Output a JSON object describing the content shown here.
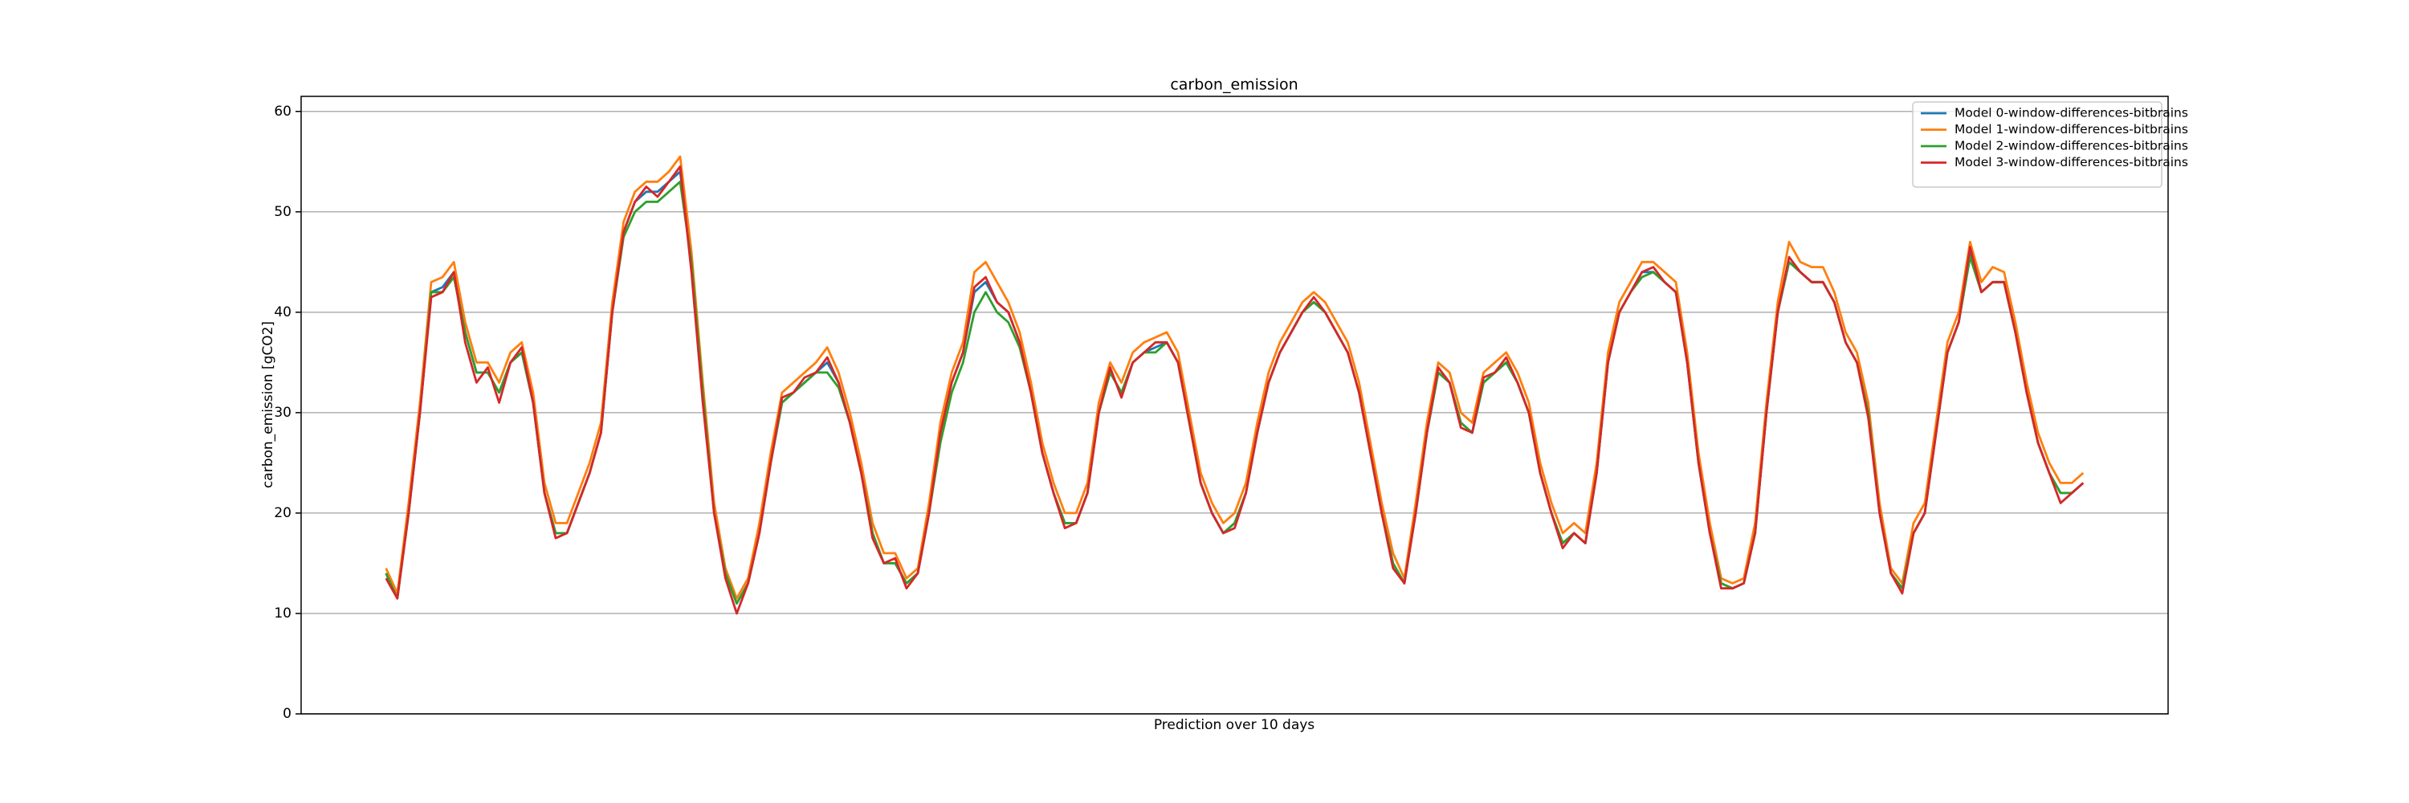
{
  "chart_data": {
    "type": "line",
    "title": "carbon_emission",
    "xlabel": "Prediction over 10 days",
    "ylabel": "carbon_emission [gCO2]",
    "ylim": [
      0,
      61.5
    ],
    "yticks": [
      0,
      10,
      20,
      30,
      40,
      50,
      60
    ],
    "grid": true,
    "legend": "upper right",
    "series": [
      {
        "name": "Model 0-window-differences-bitbrains",
        "color": "#1f77b4",
        "values": [
          14,
          11.5,
          20,
          30,
          42,
          42.5,
          44,
          38,
          34,
          34,
          32,
          35,
          36,
          31,
          22,
          18,
          18,
          21,
          24,
          28,
          40,
          48,
          51,
          52,
          52,
          53,
          54,
          45,
          32,
          20,
          14,
          11,
          13,
          18,
          25,
          31,
          32,
          33,
          34,
          35,
          33,
          29,
          24,
          18,
          15,
          15,
          13,
          14,
          20,
          28,
          33,
          36,
          42,
          43,
          41,
          40,
          37,
          32,
          26,
          22,
          19,
          19,
          22,
          30,
          34,
          32,
          35,
          36,
          36.5,
          37,
          35,
          29,
          23,
          20,
          18,
          19,
          22,
          28,
          33,
          36,
          38,
          40,
          41,
          40,
          38,
          36,
          32,
          26,
          20,
          15,
          13,
          20,
          28,
          34,
          33,
          29,
          28,
          33,
          34,
          35,
          33,
          30,
          24,
          20,
          17,
          18,
          17,
          24,
          35,
          40,
          42,
          44,
          44,
          43,
          42,
          35,
          25,
          18,
          13,
          12.5,
          13,
          18,
          30,
          40,
          45,
          44,
          43,
          43,
          41,
          37,
          35,
          30,
          20,
          14,
          12.5,
          18,
          20,
          28,
          36,
          39,
          46,
          42,
          43,
          43,
          38,
          32,
          27,
          24,
          22,
          22,
          23
        ]
      },
      {
        "name": "Model 1-window-differences-bitbrains",
        "color": "#ff7f0e",
        "values": [
          14.5,
          12,
          21,
          31,
          43,
          43.5,
          45,
          39,
          35,
          35,
          33,
          36,
          37,
          32,
          23,
          19,
          19,
          22,
          25,
          29,
          41,
          49,
          52,
          53,
          53,
          54,
          55.5,
          46,
          33,
          21,
          14.5,
          11.5,
          13.5,
          19,
          26,
          32,
          33,
          34,
          35,
          36.5,
          34,
          30,
          25,
          19,
          16,
          16,
          13.5,
          14.5,
          21,
          29,
          34,
          37,
          44,
          45,
          43,
          41,
          38,
          33,
          27,
          23,
          20,
          20,
          23,
          31,
          35,
          33,
          36,
          37,
          37.5,
          38,
          36,
          30,
          24,
          21,
          19,
          20,
          23,
          29,
          34,
          37,
          39,
          41,
          42,
          41,
          39,
          37,
          33,
          27,
          21,
          16,
          13.5,
          21,
          29,
          35,
          34,
          30,
          29,
          34,
          35,
          36,
          34,
          31,
          25,
          21,
          18,
          19,
          18,
          25,
          36,
          41,
          43,
          45,
          45,
          44,
          43,
          36,
          26,
          19,
          13.5,
          13,
          13.5,
          19,
          31,
          41,
          47,
          45,
          44.5,
          44.5,
          42,
          38,
          36,
          31,
          21,
          14.5,
          13,
          19,
          21,
          29,
          37,
          40,
          47,
          43,
          44.5,
          44,
          39,
          33,
          28,
          25,
          23,
          23,
          24
        ]
      },
      {
        "name": "Model 2-window-differences-bitbrains",
        "color": "#2ca02c",
        "values": [
          14,
          11.5,
          20,
          30,
          42,
          42,
          43.5,
          38,
          34,
          34,
          32,
          35,
          36,
          31,
          22,
          18,
          18,
          21,
          24,
          28,
          40,
          47.5,
          50,
          51,
          51,
          52,
          53,
          45,
          32,
          20,
          14,
          11,
          13,
          18,
          25,
          31,
          32,
          33,
          34,
          34,
          32.5,
          29,
          24,
          18,
          15,
          15,
          13,
          14,
          20,
          27,
          32,
          35,
          40,
          42,
          40,
          39,
          36.5,
          32,
          26,
          22,
          19,
          19,
          22,
          30,
          34,
          32,
          35,
          36,
          36,
          37,
          35,
          29,
          23,
          20,
          18,
          19,
          22,
          28,
          33,
          36,
          38,
          40,
          41,
          40,
          38,
          36,
          32,
          26,
          20,
          15,
          13,
          20,
          28,
          34,
          33,
          29,
          28,
          33,
          34,
          35,
          33,
          30,
          24,
          20,
          17,
          18,
          17,
          24,
          35,
          40,
          42,
          43.5,
          44,
          43,
          42,
          35,
          25,
          18,
          13,
          12.5,
          13,
          18,
          30,
          40,
          45,
          44,
          43,
          43,
          41,
          37,
          35,
          30,
          20,
          14,
          12.5,
          18,
          20,
          28,
          36,
          39,
          45.5,
          42,
          43,
          43,
          38,
          32,
          27,
          24,
          22,
          22,
          23
        ]
      },
      {
        "name": "Model 3-window-differences-bitbrains",
        "color": "#d62728",
        "values": [
          13.5,
          11.5,
          20,
          30,
          41.5,
          42,
          44,
          37,
          33,
          34.5,
          31,
          35,
          36.5,
          31,
          22,
          17.5,
          18,
          21,
          24,
          28,
          40,
          48,
          51,
          52.5,
          51.5,
          53,
          54.5,
          44,
          31,
          20,
          13.5,
          10,
          13,
          18,
          25,
          31.5,
          32,
          33.5,
          34,
          35.5,
          33,
          29,
          24,
          17.5,
          15,
          15.5,
          12.5,
          14,
          20,
          28,
          33,
          36,
          42.5,
          43.5,
          41,
          40,
          37,
          32,
          26,
          22,
          18.5,
          19,
          22,
          30,
          34.5,
          31.5,
          35,
          36,
          37,
          37,
          35,
          29,
          23,
          20,
          18,
          18.5,
          22,
          28,
          33,
          36,
          38,
          40,
          41.5,
          40,
          38,
          36,
          32,
          26,
          20,
          14.5,
          13,
          20,
          28,
          34.5,
          33,
          28.5,
          28,
          33.5,
          34,
          35.5,
          33,
          30,
          24,
          20,
          16.5,
          18,
          17,
          24,
          35,
          40,
          42,
          44,
          44.5,
          43,
          42,
          35,
          25,
          18,
          12.5,
          12.5,
          13,
          18,
          30,
          40,
          45.5,
          44,
          43,
          43,
          41,
          37,
          35,
          29.5,
          20,
          14,
          12,
          18,
          20,
          28,
          36,
          39,
          46.5,
          42,
          43,
          43,
          38,
          32,
          27,
          24,
          21,
          22,
          23
        ]
      }
    ]
  }
}
